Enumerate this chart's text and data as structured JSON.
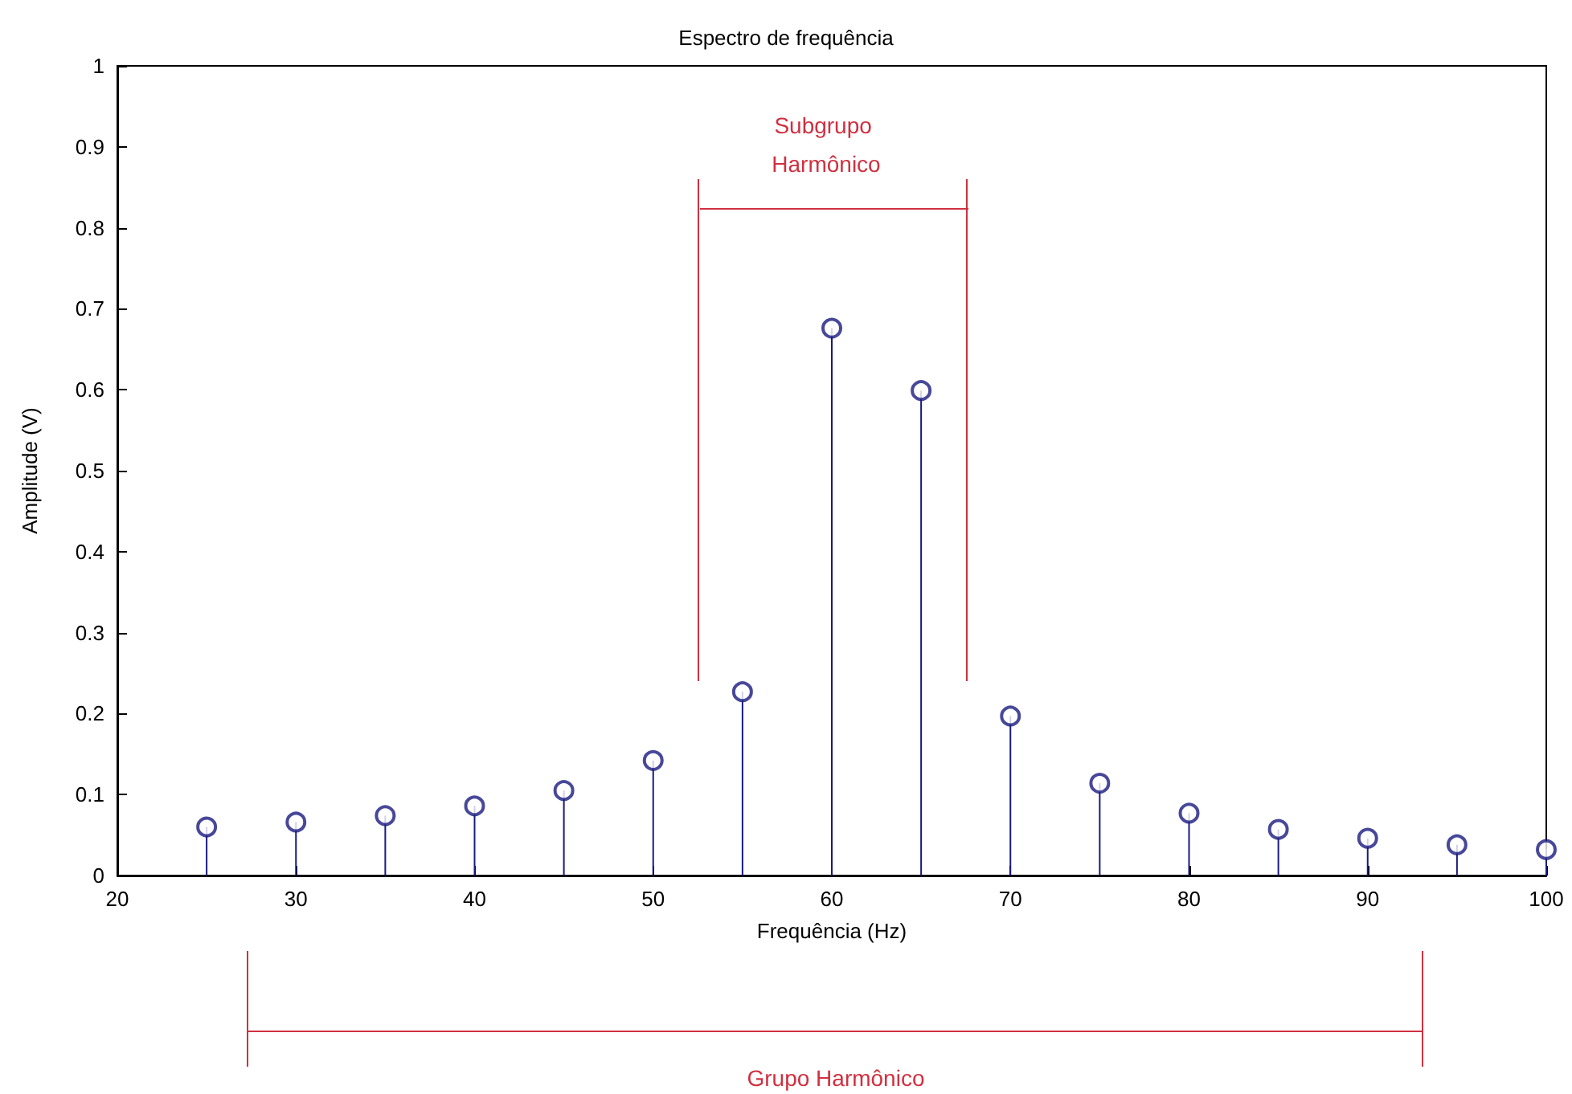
{
  "chart_data": {
    "type": "lollipop",
    "title": "Espectro de frequência",
    "xlabel": "Frequência (Hz)",
    "ylabel": "Amplitude (V)",
    "x": [
      25,
      30,
      35,
      40,
      45,
      50,
      55,
      60,
      65,
      70,
      75,
      80,
      85,
      90,
      95,
      100
    ],
    "series": [
      {
        "color": "#1a1a80",
        "values": [
          0.06,
          0.066,
          0.074,
          0.086,
          0.105,
          0.142,
          0.227,
          0.676,
          0.599,
          0.197,
          0.114,
          0.077,
          0.057,
          0.046,
          0.038,
          0.032
        ]
      }
    ],
    "xlim": [
      20,
      100
    ],
    "xticks": [
      20,
      30,
      40,
      50,
      60,
      70,
      80,
      90,
      100
    ],
    "ylim": [
      0,
      1
    ],
    "yticks": [
      0,
      0.1,
      0.2,
      0.3,
      0.4,
      0.5,
      0.6,
      0.7,
      0.8,
      0.9,
      1
    ],
    "marker": "circle",
    "grid": false,
    "ref_lines": [
      {
        "axis": "x",
        "value": 52.5,
        "color": "#d03040"
      },
      {
        "axis": "x",
        "value": 67.5,
        "color": "#d03040"
      }
    ],
    "annotations": [
      "Subgrupo Harmônico",
      "Grupo Harmônico"
    ]
  }
}
